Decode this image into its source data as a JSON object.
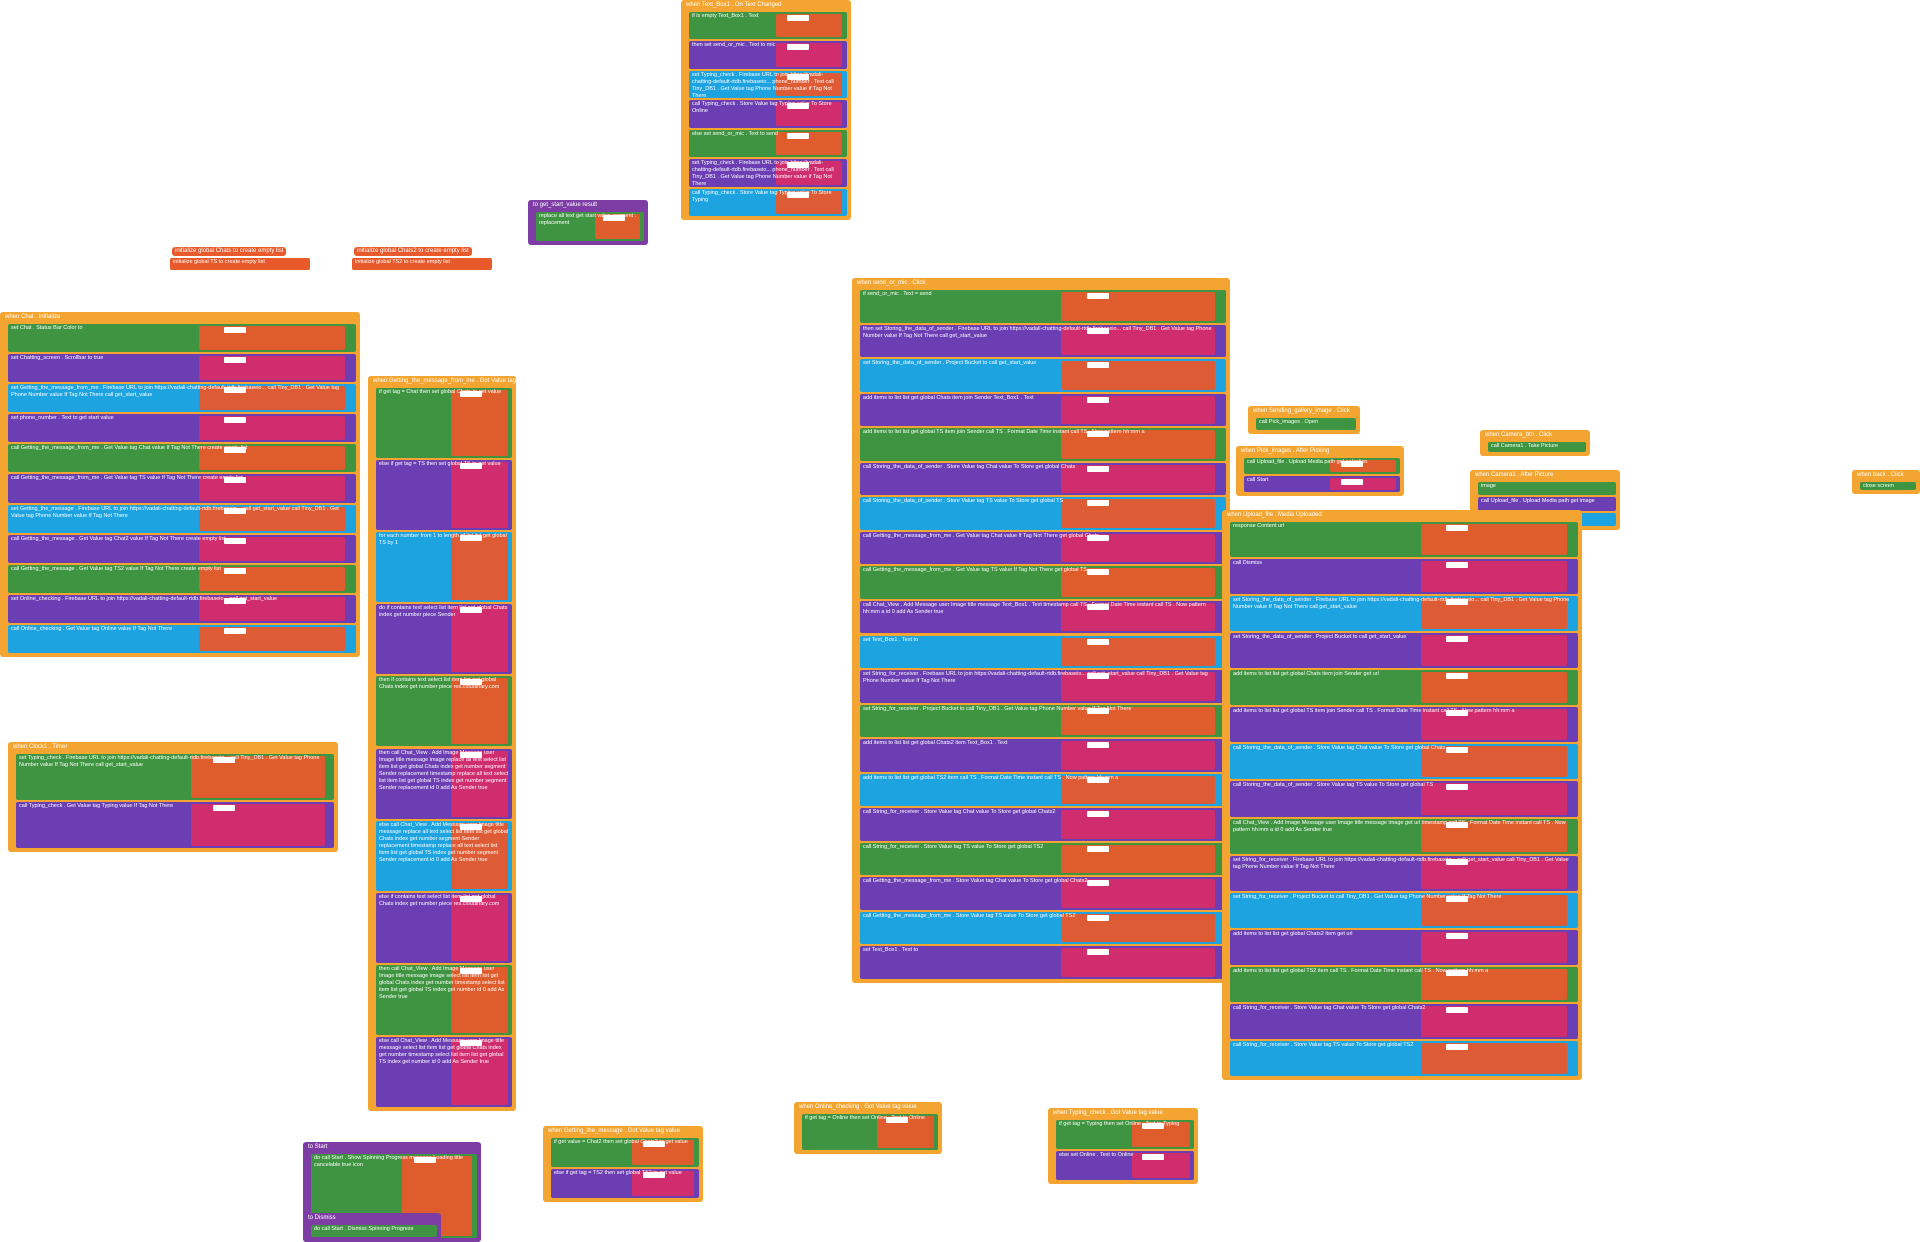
{
  "palette": {
    "event": "#F4A531",
    "variable": "#E8592B",
    "lists": "#1CA3E0",
    "text": "#D62C6C",
    "component": "#6B3FB3",
    "setter": "#3F9441",
    "logic": "#7BBE3E",
    "math": "#2F6FC0",
    "procedure": "#7E3DA5",
    "white_chip": "#FFFFFF"
  },
  "groups": [
    {
      "header": "when Text_Box1 . On Text Changed",
      "rows": [
        "if is empty Text_Box1 . Text",
        "then set send_or_mic . Text to mic",
        "set Typing_check . Firebase URL to join https://vadali-chatting-default-rtdb.firebaseio... phone_number . Text call Tiny_DB1 . Get Value tag Phone Number value If Tag Not There",
        "call Typing_check . Store Value tag Typing value To Store Online",
        "else set send_or_mic . Text to send",
        "set Typing_check . Firebase URL to join https://vadali-chatting-default-rtdb.firebaseio... phone_number . Text call Tiny_DB1 . Get Value tag Phone Number value If Tag Not There",
        "call Typing_check . Store Value tag Typing value To Store Typing"
      ]
    },
    {
      "header": "to get_start_value result",
      "rows": [
        "replace all text get start value segment . replacement"
      ]
    },
    {
      "header": "initialize global Chats to create empty list",
      "rows": [
        "initialize global TS to create empty list"
      ]
    },
    {
      "header": "initialize global Chats2 to create empty list",
      "rows": [
        "initialize global TS2 to create empty list"
      ]
    },
    {
      "header": "when Chat . Initialize",
      "rows": [
        "set Chat . Status Bar Color to",
        "set Chatting_screen . Scrollbar to true",
        "set Getting_the_message_from_me . Firebase URL to join https://vadali-chatting-default-rtdb.firebaseio... call Tiny_DB1 . Get Value tag Phone Number value If Tag Not There call get_start_value",
        "set phone_number . Text to get start value",
        "call Getting_the_message_from_me . Get Value tag Chat value If Tag Not There create empty list",
        "call Getting_the_message_from_me . Get Value tag TS value If Tag Not There create empty list",
        "set Getting_the_message . Firebase URL to join https://vadali-chatting-default-rtdb.firebaseio... call get_start_value call Tiny_DB1 . Get Value tag Phone Number value If Tag Not There",
        "call Getting_the_message . Get Value tag Chat2 value If Tag Not There create empty list",
        "call Getting_the_message . Get Value tag TS2 value If Tag Not There create empty list",
        "set Online_checking . Firebase URL to join https://vadali-chatting-default-rtdb.firebaseio... call get_start_value",
        "call Online_checking . Get Value tag Online value If Tag Not There"
      ]
    },
    {
      "header": "when Clock1 . Timer",
      "rows": [
        "set Typing_check . Firebase URL to join https://vadali-chatting-default-rtdb.firebaseio... call Tiny_DB1 . Get Value tag Phone Number value If Tag Not There call get_start_value",
        "call Typing_check . Get Value tag Typing value If Tag Not There"
      ]
    },
    {
      "header": "when Getting_the_message_from_me . Got Value tag value",
      "rows": [
        "if get tag = Chat then set global Chats to get value",
        "else if get tag = TS then set global TS to get value",
        "for each number from 1 to length of list list get global TS by 1",
        "do if contains text select list item list get global Chats index get number piece Sender",
        "then if contains text select list item list get global Chats index get number piece res.cloudinary.com",
        "then call Chat_View . Add Image Message user Image title message image replace all text select list item list get global Chats index get number segment Sender replacement timestamp replace all text select list item list get global TS index get number segment Sender replacement id 0 add As Sender true",
        "else call Chat_View . Add Message user Image title message replace all text select list item list get global Chats index get number segment Sender replacement timestamp replace all text select list item list get global TS index get number segment Sender replacement id 0 add As Sender true",
        "else if contains text select list item list get global Chats index get number piece res.cloudinary.com",
        "then call Chat_View . Add Image Message user Image title message image select list item list get global Chats index get number timestamp select list item list get global TS index get number id 0 add As Sender true",
        "else call Chat_View . Add Message user Image title message select list item list get global Chats index get number timestamp select list item list get global TS index get number id 0 add As Sender true"
      ]
    },
    {
      "header": "when send_or_mic . Click",
      "rows": [
        "if send_or_mic . Text = send",
        "then set Storing_the_data_of_sender . Firebase URL to join https://vadali-chatting-default-rtdb.firebaseio... call Tiny_DB1 . Get Value tag Phone Number value If Tag Not There call get_start_value",
        "set Storing_the_data_of_sender . Project Bucket to call get_start_value",
        "add items to list list get global Chats item join Sender Text_Box1 . Text",
        "add items to list list get global TS item join Sender call TS . Format Date Time instant call TS . Now pattern hh:mm a",
        "call Storing_the_data_of_sender . Store Value tag Chat value To Store get global Chats",
        "call Storing_the_data_of_sender . Store Value tag TS value To Store get global TS",
        "call Getting_the_message_from_me . Get Value tag Chat value If Tag Not There get global Chats",
        "call Getting_the_message_from_me . Get Value tag TS value If Tag Not There get global TS",
        "call Chat_View . Add Message user Image title message Text_Box1 . Text timestamp call TS . Format Date Time instant call TS . Now pattern hh:mm a id 0 add As Sender true",
        "set Text_Box1 . Text to",
        "set String_for_receiver . Firebase URL to join https://vadali-chatting-default-rtdb.firebaseio... call get_start_value call Tiny_DB1 . Get Value tag Phone Number value If Tag Not There",
        "set String_for_receiver . Project Bucket to call Tiny_DB1 . Get Value tag Phone Number value If Tag Not There",
        "add items to list list get global Chats2 item Text_Box1 . Text",
        "add items to list list get global TS2 item call TS . Format Date Time instant call TS . Now pattern hh:mm a",
        "call String_for_receiver . Store Value tag Chat value To Store get global Chats2",
        "call String_for_receiver . Store Value tag TS value To Store get global TS2",
        "call Getting_the_message_from_me . Store Value tag Chat value To Store get global Chats2",
        "call Getting_the_message_from_me . Store Value tag TS value To Store get global TS2",
        "set Text_Box1 . Text to"
      ]
    },
    {
      "header": "when Sending_gallery_image . Click",
      "rows": [
        "call Pick_images . Open"
      ]
    },
    {
      "header": "when Pick_images . After Picking",
      "rows": [
        "call Upload_file . Upload Media path get selection",
        "call Start"
      ]
    },
    {
      "header": "when Camera_btn . Click",
      "rows": [
        "call Camera1 . Take Picture"
      ]
    },
    {
      "header": "when Camera1 . After Picture",
      "rows": [
        "image",
        "call Upload_file . Upload Media path get image",
        "call Start"
      ]
    },
    {
      "header": "when back . Click",
      "rows": [
        "close screen"
      ]
    },
    {
      "header": "when Upload_file . Media Uploaded",
      "rows": [
        "response Content url",
        "call Dismiss",
        "set Storing_the_data_of_sender . Firebase URL to join https://vadali-chatting-default-rtdb.firebaseio... call Tiny_DB1 . Get Value tag Phone Number value If Tag Not There call get_start_value",
        "set Storing_the_data_of_sender . Project Bucket to call get_start_value",
        "add items to list list get global Chats item join Sender get url",
        "add items to list list get global TS item join Sender call TS . Format Date Time instant call TS . Now pattern hh:mm a",
        "call Storing_the_data_of_sender . Store Value tag Chat value To Store get global Chats",
        "call Storing_the_data_of_sender . Store Value tag TS value To Store get global TS",
        "call Chat_View . Add Image Message user Image title message image get url timestamp call TS . Format Date Time instant call TS . Now pattern hh:mm a id 0 add As Sender true",
        "set String_for_receiver . Firebase URL to join https://vadali-chatting-default-rtdb.firebaseio... call get_start_value call Tiny_DB1 . Get Value tag Phone Number value If Tag Not There",
        "set String_for_receiver . Project Bucket to call Tiny_DB1 . Get Value tag Phone Number value If Tag Not There",
        "add items to list list get global Chats2 item get url",
        "add items to list list get global TS2 item call TS . Format Date Time instant call TS . Now pattern hh:mm a",
        "call String_for_receiver . Store Value tag Chat value To Store get global Chats2",
        "call String_for_receiver . Store Value tag TS value To Store get global TS2"
      ]
    },
    {
      "header": "to Start",
      "rows": [
        "do call Start . Show Spinning Progress message Loading title cancelable true icon"
      ]
    },
    {
      "header": "to Dismiss",
      "rows": [
        "do call Start . Dismiss Spinning Progress"
      ]
    },
    {
      "header": "when Getting_the_message . Got Value tag value",
      "rows": [
        "if get value = Chat2 then set global Chats2 to get value",
        "else if get tag = TS2 then set global TS2 to get value"
      ]
    },
    {
      "header": "when Online_checking . Got Value tag value",
      "rows": [
        "if get tag = Online then set Online . Text to Online"
      ]
    },
    {
      "header": "when Typing_check . Got Value tag value",
      "rows": [
        "if get tag = Typing then set Online . Text to Typing",
        "else set Online . Text to Online"
      ]
    }
  ]
}
